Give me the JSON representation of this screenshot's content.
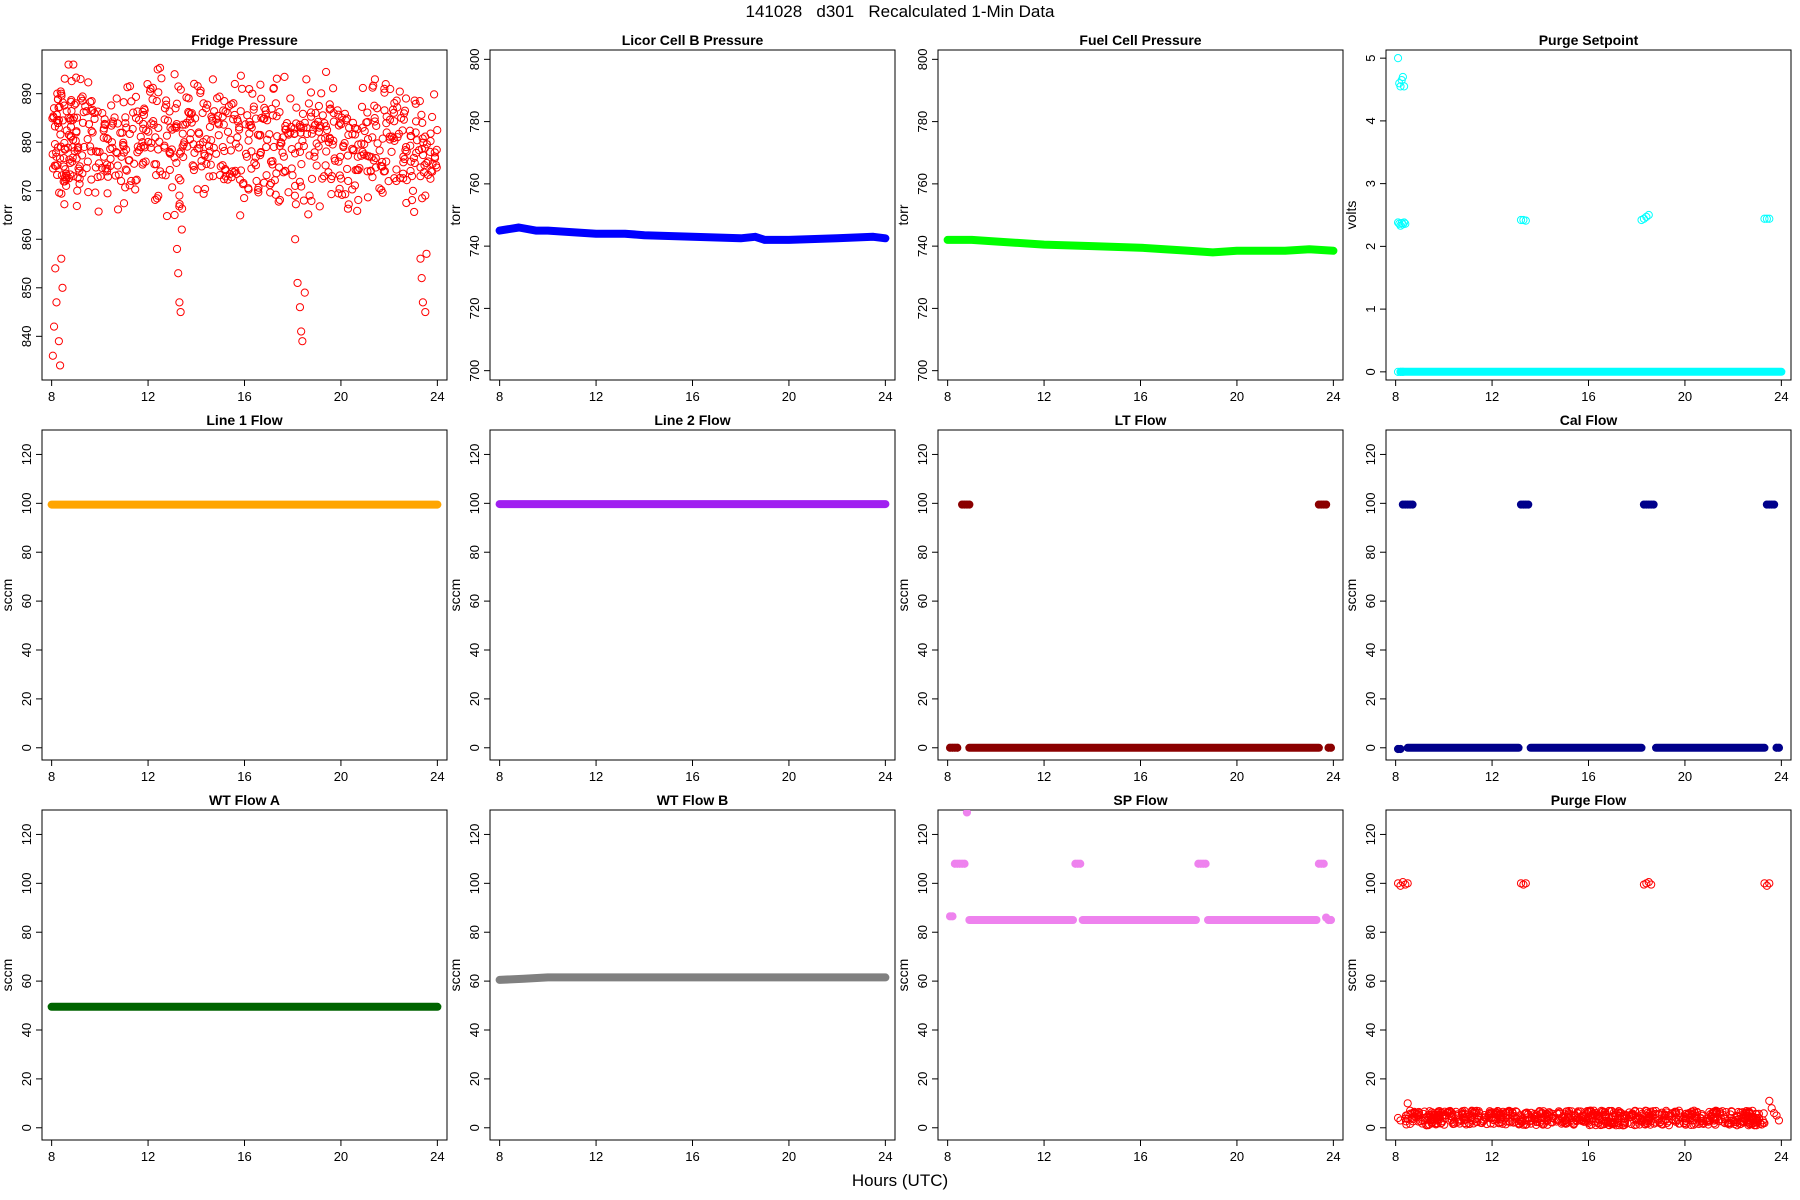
{
  "page": {
    "title": "141028   d301   Recalculated 1-Min Data",
    "xlabel": "Hours (UTC)"
  },
  "chart_data": [
    {
      "type": "scatter",
      "title": "Fridge Pressure",
      "ylabel": "torr",
      "xlim": [
        7.6,
        24.4
      ],
      "ylim": [
        831,
        899
      ],
      "xticks": [
        8,
        12,
        16,
        20,
        24
      ],
      "yticks": [
        840,
        850,
        860,
        870,
        880,
        890
      ],
      "color": "#ff0000",
      "marker": "open",
      "points": [
        [
          8.1,
          887
        ],
        [
          8.2,
          877
        ],
        [
          8.3,
          883
        ],
        [
          8.4,
          890
        ],
        [
          8.5,
          875
        ],
        [
          8.6,
          871
        ],
        [
          8.7,
          885
        ],
        [
          8.8,
          881
        ],
        [
          8.9,
          873
        ],
        [
          9.0,
          888
        ],
        [
          9.1,
          879
        ],
        [
          9.3,
          884
        ],
        [
          9.5,
          876
        ],
        [
          9.7,
          882
        ],
        [
          9.9,
          878
        ],
        [
          10.1,
          886
        ],
        [
          10.3,
          874
        ],
        [
          10.5,
          880
        ],
        [
          10.7,
          889
        ],
        [
          10.9,
          877
        ],
        [
          11.1,
          883
        ],
        [
          11.3,
          872
        ],
        [
          11.5,
          885
        ],
        [
          11.7,
          879
        ],
        [
          11.9,
          876
        ],
        [
          12.1,
          891
        ],
        [
          12.3,
          881
        ],
        [
          12.5,
          874
        ],
        [
          12.7,
          887
        ],
        [
          12.9,
          878
        ],
        [
          13.1,
          883
        ],
        [
          13.3,
          869
        ],
        [
          13.5,
          880
        ],
        [
          13.7,
          886
        ],
        [
          13.9,
          875
        ],
        [
          14.1,
          882
        ],
        [
          14.3,
          888
        ],
        [
          14.5,
          877
        ],
        [
          14.7,
          873
        ],
        [
          14.9,
          884
        ],
        [
          15.1,
          879
        ],
        [
          15.3,
          886
        ],
        [
          15.5,
          874
        ],
        [
          15.7,
          881
        ],
        [
          15.9,
          891
        ],
        [
          16.1,
          877
        ],
        [
          16.3,
          883
        ],
        [
          16.5,
          872
        ],
        [
          16.7,
          885
        ],
        [
          16.9,
          879
        ],
        [
          17.1,
          876
        ],
        [
          17.3,
          888
        ],
        [
          17.5,
          880
        ],
        [
          17.7,
          874
        ],
        [
          17.9,
          882
        ],
        [
          18.1,
          871
        ],
        [
          18.3,
          878
        ],
        [
          18.5,
          884
        ],
        [
          18.7,
          869
        ],
        [
          18.9,
          877
        ],
        [
          19.1,
          883
        ],
        [
          19.3,
          873
        ],
        [
          19.5,
          880
        ],
        [
          19.7,
          886
        ],
        [
          19.9,
          876
        ],
        [
          20.1,
          879
        ],
        [
          20.3,
          872
        ],
        [
          20.5,
          884
        ],
        [
          20.7,
          877
        ],
        [
          20.9,
          883
        ],
        [
          21.1,
          874
        ],
        [
          21.3,
          881
        ],
        [
          21.5,
          887
        ],
        [
          21.7,
          875
        ],
        [
          21.9,
          882
        ],
        [
          22.1,
          878
        ],
        [
          22.3,
          872
        ],
        [
          22.5,
          885
        ],
        [
          22.7,
          879
        ],
        [
          22.9,
          876
        ],
        [
          23.1,
          882
        ],
        [
          23.3,
          873
        ],
        [
          23.5,
          869
        ],
        [
          23.7,
          878
        ],
        [
          23.9,
          877
        ],
        [
          8.05,
          836
        ],
        [
          8.1,
          842
        ],
        [
          8.15,
          854
        ],
        [
          8.2,
          847
        ],
        [
          8.3,
          839
        ],
        [
          8.35,
          834
        ],
        [
          8.4,
          856
        ],
        [
          8.45,
          850
        ],
        [
          13.1,
          865
        ],
        [
          13.2,
          858
        ],
        [
          13.25,
          853
        ],
        [
          13.3,
          847
        ],
        [
          13.35,
          845
        ],
        [
          13.4,
          862
        ],
        [
          18.1,
          860
        ],
        [
          18.2,
          851
        ],
        [
          18.3,
          846
        ],
        [
          18.35,
          841
        ],
        [
          18.4,
          839
        ],
        [
          18.5,
          849
        ],
        [
          23.3,
          856
        ],
        [
          23.35,
          852
        ],
        [
          23.4,
          847
        ],
        [
          23.5,
          845
        ],
        [
          23.55,
          857
        ],
        [
          8.7,
          896
        ],
        [
          8.9,
          896
        ],
        [
          9.2,
          893
        ],
        [
          12.4,
          895
        ],
        [
          13.1,
          894
        ],
        [
          15.6,
          892
        ],
        [
          17.2,
          891
        ],
        [
          21.8,
          891
        ],
        [
          22.7,
          889
        ]
      ]
    },
    {
      "type": "scatter",
      "title": "Licor Cell B Pressure",
      "ylabel": "torr",
      "xlim": [
        7.6,
        24.4
      ],
      "ylim": [
        697,
        803
      ],
      "xticks": [
        8,
        12,
        16,
        20,
        24
      ],
      "yticks": [
        700,
        720,
        740,
        760,
        780,
        800
      ],
      "color": "#0000ff",
      "marker": "filled",
      "line": [
        [
          8,
          745
        ],
        [
          8.8,
          746
        ],
        [
          9.5,
          745
        ],
        [
          10,
          745
        ],
        [
          12,
          744
        ],
        [
          13.2,
          744
        ],
        [
          14,
          743.5
        ],
        [
          16,
          743
        ],
        [
          18,
          742.5
        ],
        [
          18.6,
          743
        ],
        [
          19,
          742
        ],
        [
          20,
          742
        ],
        [
          22,
          742.5
        ],
        [
          23.5,
          743
        ],
        [
          24,
          742.5
        ]
      ]
    },
    {
      "type": "scatter",
      "title": "Fuel Cell Pressure",
      "ylabel": "torr",
      "xlim": [
        7.6,
        24.4
      ],
      "ylim": [
        697,
        803
      ],
      "xticks": [
        8,
        12,
        16,
        20,
        24
      ],
      "yticks": [
        700,
        720,
        740,
        760,
        780,
        800
      ],
      "color": "#00ff00",
      "marker": "filled",
      "line": [
        [
          8,
          742
        ],
        [
          9,
          742
        ],
        [
          10,
          741.5
        ],
        [
          12,
          740.5
        ],
        [
          14,
          740
        ],
        [
          16,
          739.5
        ],
        [
          17,
          739
        ],
        [
          18,
          738.5
        ],
        [
          19,
          738
        ],
        [
          20,
          738.5
        ],
        [
          22,
          738.5
        ],
        [
          23,
          739
        ],
        [
          24,
          738.5
        ]
      ]
    },
    {
      "type": "scatter",
      "title": "Purge Setpoint",
      "ylabel": "volts",
      "xlim": [
        7.6,
        24.4
      ],
      "ylim": [
        -0.13,
        5.13
      ],
      "xticks": [
        8,
        12,
        16,
        20,
        24
      ],
      "yticks": [
        0,
        1,
        2,
        3,
        4,
        5
      ],
      "color": "#00ffff",
      "marker": "open",
      "line": [
        [
          8.2,
          0
        ],
        [
          24,
          0
        ]
      ],
      "points": [
        [
          8.1,
          5.0
        ],
        [
          8.15,
          4.6
        ],
        [
          8.2,
          4.55
        ],
        [
          8.25,
          4.65
        ],
        [
          8.3,
          4.7
        ],
        [
          8.35,
          4.55
        ],
        [
          8.1,
          2.38
        ],
        [
          8.15,
          2.36
        ],
        [
          8.2,
          2.33
        ],
        [
          8.25,
          2.37
        ],
        [
          8.3,
          2.35
        ],
        [
          8.35,
          2.38
        ],
        [
          8.4,
          2.36
        ],
        [
          13.2,
          2.42
        ],
        [
          13.3,
          2.42
        ],
        [
          13.4,
          2.41
        ],
        [
          18.2,
          2.42
        ],
        [
          18.3,
          2.44
        ],
        [
          18.4,
          2.47
        ],
        [
          18.5,
          2.5
        ],
        [
          23.3,
          2.44
        ],
        [
          23.4,
          2.44
        ],
        [
          23.5,
          2.44
        ],
        [
          8.1,
          0
        ],
        [
          8.2,
          0
        ],
        [
          8.3,
          0
        ]
      ]
    },
    {
      "type": "scatter",
      "title": "Line 1 Flow",
      "ylabel": "sccm",
      "xlim": [
        7.6,
        24.4
      ],
      "ylim": [
        -5,
        130
      ],
      "xticks": [
        8,
        12,
        16,
        20,
        24
      ],
      "yticks": [
        0,
        20,
        40,
        60,
        80,
        100,
        120
      ],
      "color": "#ffa500",
      "marker": "filled",
      "line": [
        [
          8,
          99.5
        ],
        [
          24,
          99.5
        ]
      ]
    },
    {
      "type": "scatter",
      "title": "Line 2 Flow",
      "ylabel": "sccm",
      "xlim": [
        7.6,
        24.4
      ],
      "ylim": [
        -5,
        130
      ],
      "xticks": [
        8,
        12,
        16,
        20,
        24
      ],
      "yticks": [
        0,
        20,
        40,
        60,
        80,
        100,
        120
      ],
      "color": "#a020f0",
      "marker": "filled",
      "line": [
        [
          8,
          99.7
        ],
        [
          24,
          99.7
        ]
      ]
    },
    {
      "type": "scatter",
      "title": "LT Flow",
      "ylabel": "sccm",
      "xlim": [
        7.6,
        24.4
      ],
      "ylim": [
        -5,
        130
      ],
      "xticks": [
        8,
        12,
        16,
        20,
        24
      ],
      "yticks": [
        0,
        20,
        40,
        60,
        80,
        100,
        120
      ],
      "color": "#8b0000",
      "marker": "filled",
      "line": [
        [
          8.9,
          0
        ],
        [
          23.4,
          0
        ]
      ],
      "points": [
        [
          8.6,
          99.5
        ],
        [
          8.7,
          99.5
        ],
        [
          8.8,
          99.5
        ],
        [
          8.9,
          99.5
        ],
        [
          23.4,
          99.5
        ],
        [
          23.5,
          99.5
        ],
        [
          23.6,
          99.5
        ],
        [
          23.7,
          99.5
        ],
        [
          8.1,
          0
        ],
        [
          8.2,
          0
        ],
        [
          8.3,
          0
        ],
        [
          8.4,
          0
        ],
        [
          23.8,
          0
        ],
        [
          23.9,
          0
        ]
      ]
    },
    {
      "type": "scatter",
      "title": "Cal Flow",
      "ylabel": "sccm",
      "xlim": [
        7.6,
        24.4
      ],
      "ylim": [
        -5,
        130
      ],
      "xticks": [
        8,
        12,
        16,
        20,
        24
      ],
      "yticks": [
        0,
        20,
        40,
        60,
        80,
        100,
        120
      ],
      "color": "#00008b",
      "marker": "filled",
      "segments": [
        [
          8.5,
          13.1,
          0
        ],
        [
          13.6,
          18.2,
          0
        ],
        [
          18.8,
          23.3,
          0
        ]
      ],
      "points": [
        [
          8.1,
          -0.5
        ],
        [
          8.2,
          -0.5
        ],
        [
          23.8,
          0
        ],
        [
          23.9,
          0
        ],
        [
          8.3,
          99.5
        ],
        [
          8.4,
          99.5
        ],
        [
          8.5,
          99.5
        ],
        [
          8.6,
          99.5
        ],
        [
          8.7,
          99.5
        ],
        [
          13.2,
          99.5
        ],
        [
          13.3,
          99.5
        ],
        [
          13.4,
          99.5
        ],
        [
          13.5,
          99.5
        ],
        [
          18.3,
          99.5
        ],
        [
          18.4,
          99.5
        ],
        [
          18.5,
          99.5
        ],
        [
          18.6,
          99.5
        ],
        [
          18.7,
          99.5
        ],
        [
          23.4,
          99.5
        ],
        [
          23.5,
          99.5
        ],
        [
          23.6,
          99.5
        ],
        [
          23.7,
          99.5
        ]
      ]
    },
    {
      "type": "scatter",
      "title": "WT Flow A",
      "ylabel": "sccm",
      "xlim": [
        7.6,
        24.4
      ],
      "ylim": [
        -5,
        130
      ],
      "xticks": [
        8,
        12,
        16,
        20,
        24
      ],
      "yticks": [
        0,
        20,
        40,
        60,
        80,
        100,
        120
      ],
      "color": "#006400",
      "marker": "filled",
      "line": [
        [
          8,
          49.5
        ],
        [
          24,
          49.5
        ]
      ]
    },
    {
      "type": "scatter",
      "title": "WT Flow B",
      "ylabel": "sccm",
      "xlim": [
        7.6,
        24.4
      ],
      "ylim": [
        -5,
        130
      ],
      "xticks": [
        8,
        12,
        16,
        20,
        24
      ],
      "yticks": [
        0,
        20,
        40,
        60,
        80,
        100,
        120
      ],
      "color": "#808080",
      "marker": "filled",
      "line": [
        [
          8,
          60.5
        ],
        [
          9,
          61
        ],
        [
          10,
          61.5
        ],
        [
          16,
          61.5
        ],
        [
          24,
          61.5
        ]
      ]
    },
    {
      "type": "scatter",
      "title": "SP Flow",
      "ylabel": "sccm",
      "xlim": [
        7.6,
        24.4
      ],
      "ylim": [
        -5,
        130
      ],
      "xticks": [
        8,
        12,
        16,
        20,
        24
      ],
      "yticks": [
        0,
        20,
        40,
        60,
        80,
        100,
        120
      ],
      "color": "#ee82ee",
      "marker": "filled",
      "segments": [
        [
          8.9,
          13.2,
          85
        ],
        [
          13.6,
          18.3,
          85
        ],
        [
          18.8,
          23.3,
          85
        ]
      ],
      "points": [
        [
          8.1,
          86.5
        ],
        [
          8.2,
          86.5
        ],
        [
          8.3,
          108
        ],
        [
          8.4,
          108
        ],
        [
          8.5,
          108
        ],
        [
          8.6,
          108
        ],
        [
          8.7,
          108
        ],
        [
          8.8,
          129
        ],
        [
          13.3,
          108
        ],
        [
          13.4,
          108
        ],
        [
          13.5,
          108
        ],
        [
          18.4,
          108
        ],
        [
          18.5,
          108
        ],
        [
          18.6,
          108
        ],
        [
          18.7,
          108
        ],
        [
          23.4,
          108
        ],
        [
          23.5,
          108
        ],
        [
          23.6,
          108
        ],
        [
          23.7,
          86
        ],
        [
          23.8,
          85
        ],
        [
          23.9,
          85
        ]
      ]
    },
    {
      "type": "scatter",
      "title": "Purge Flow",
      "ylabel": "sccm",
      "xlim": [
        7.6,
        24.4
      ],
      "ylim": [
        -5,
        130
      ],
      "xticks": [
        8,
        12,
        16,
        20,
        24
      ],
      "yticks": [
        0,
        20,
        40,
        60,
        80,
        100,
        120
      ],
      "color": "#ff0000",
      "marker": "open",
      "band": {
        "x0": 8.4,
        "x1": 23.3,
        "ymin": 1,
        "ymax": 7
      },
      "points": [
        [
          8.1,
          4
        ],
        [
          8.2,
          3
        ],
        [
          8.1,
          100
        ],
        [
          8.2,
          99
        ],
        [
          8.3,
          100.5
        ],
        [
          8.4,
          99.5
        ],
        [
          8.5,
          100
        ],
        [
          13.2,
          100
        ],
        [
          13.3,
          99.5
        ],
        [
          13.4,
          100
        ],
        [
          18.3,
          99.5
        ],
        [
          18.4,
          100
        ],
        [
          18.5,
          100.5
        ],
        [
          18.6,
          99.5
        ],
        [
          23.3,
          100
        ],
        [
          23.4,
          99
        ],
        [
          23.5,
          100
        ],
        [
          8.5,
          10
        ],
        [
          8.6,
          7
        ],
        [
          8.7,
          6
        ],
        [
          23.5,
          11
        ],
        [
          23.6,
          8
        ],
        [
          23.7,
          6
        ],
        [
          23.8,
          5
        ],
        [
          23.9,
          3
        ]
      ]
    }
  ]
}
